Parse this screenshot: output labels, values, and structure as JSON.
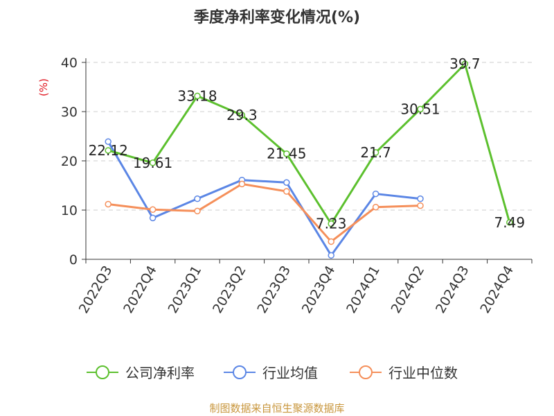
{
  "chart_data": {
    "type": "line",
    "title": "季度净利率变化情况(%)",
    "unit_label": "(%)",
    "categories": [
      "2022Q3",
      "2022Q4",
      "2023Q1",
      "2023Q2",
      "2023Q3",
      "2023Q4",
      "2024Q1",
      "2024Q2",
      "2024Q3",
      "2024Q4"
    ],
    "ylim": [
      0,
      40
    ],
    "yticks": [
      0,
      10,
      20,
      30,
      40
    ],
    "grid": "horizontal dashed",
    "legend_position": "bottom",
    "series": [
      {
        "name": "公司净利率",
        "color": "#5cc02e",
        "values": [
          22.12,
          19.61,
          33.18,
          29.3,
          21.45,
          7.23,
          21.7,
          30.51,
          39.7,
          7.49
        ],
        "labels": [
          "22.12",
          "19.61",
          "33.18",
          "29.3",
          "21.45",
          "7.23",
          "21.7",
          "30.51",
          "39.7",
          "7.49"
        ]
      },
      {
        "name": "行业均值",
        "color": "#5b86e5",
        "values": [
          23.9,
          8.4,
          12.3,
          16.1,
          15.6,
          0.8,
          13.3,
          12.3,
          null,
          null
        ]
      },
      {
        "name": "行业中位数",
        "color": "#f58f5a",
        "values": [
          11.2,
          10.1,
          9.8,
          15.3,
          13.8,
          3.6,
          10.6,
          10.9,
          null,
          null
        ]
      }
    ]
  },
  "source": "制图数据来自恒生聚源数据库"
}
